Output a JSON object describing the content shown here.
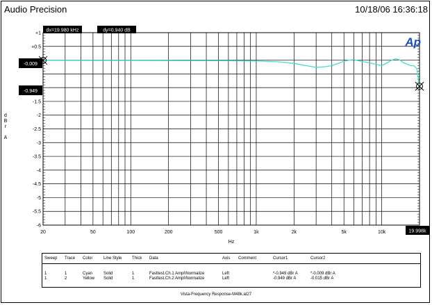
{
  "header": {
    "app_title": "Audio Precision",
    "timestamp": "10/18/06 16:36:18"
  },
  "logo": "Ap",
  "cursor_readout": {
    "dx": "dx=19.980 kHz",
    "dy": "dy=0.940  dB"
  },
  "cursor_tags": {
    "c1": "-0.009",
    "c2": "-0.949",
    "x": "19.998k"
  },
  "chart_data": {
    "type": "line",
    "title": "",
    "xlabel": "Hz",
    "ylabel": "dBr A",
    "x_scale": "log",
    "xlim": [
      20,
      20000
    ],
    "ylim": [
      -6,
      1
    ],
    "x_ticks": [
      {
        "v": 20,
        "label": "20"
      },
      {
        "v": 50,
        "label": "50"
      },
      {
        "v": 100,
        "label": "100"
      },
      {
        "v": 200,
        "label": "200"
      },
      {
        "v": 500,
        "label": "500"
      },
      {
        "v": 1000,
        "label": "1k"
      },
      {
        "v": 2000,
        "label": "2k"
      },
      {
        "v": 5000,
        "label": "5k"
      },
      {
        "v": 10000,
        "label": "10k"
      }
    ],
    "y_ticks": [
      {
        "v": 1,
        "label": "+1"
      },
      {
        "v": 0.5,
        "label": "+0.5"
      },
      {
        "v": 0,
        "label": "0"
      },
      {
        "v": -0.5,
        "label": "-0.5"
      },
      {
        "v": -1,
        "label": "-1"
      },
      {
        "v": -1.5,
        "label": "-1.5"
      },
      {
        "v": -2,
        "label": "-2"
      },
      {
        "v": -2.5,
        "label": "-2.5"
      },
      {
        "v": -3,
        "label": "-3"
      },
      {
        "v": -3.5,
        "label": "-3.5"
      },
      {
        "v": -4,
        "label": "-4"
      },
      {
        "v": -4.5,
        "label": "-4.5"
      },
      {
        "v": -5,
        "label": "-5"
      },
      {
        "v": -5.5,
        "label": "-5.5"
      },
      {
        "v": -6,
        "label": "-6"
      }
    ],
    "grid": true,
    "cursors": [
      {
        "name": "Cursor1",
        "x": 19998,
        "y": -0.949
      },
      {
        "name": "Cursor2",
        "x": 20,
        "y": -0.009
      }
    ],
    "series": [
      {
        "color": "#40e0c8",
        "points": [
          [
            20,
            -0.009
          ],
          [
            50,
            -0.01
          ],
          [
            100,
            -0.012
          ],
          [
            200,
            -0.015
          ],
          [
            500,
            -0.02
          ],
          [
            1000,
            -0.03
          ],
          [
            1500,
            -0.06
          ],
          [
            2000,
            -0.12
          ],
          [
            2500,
            -0.2
          ],
          [
            3000,
            -0.26
          ],
          [
            3500,
            -0.24
          ],
          [
            4000,
            -0.2
          ],
          [
            4500,
            -0.12
          ],
          [
            5000,
            -0.04
          ],
          [
            5500,
            0.0
          ],
          [
            6000,
            0.02
          ],
          [
            6500,
            -0.02
          ],
          [
            7000,
            -0.05
          ],
          [
            8000,
            -0.1
          ],
          [
            9000,
            -0.15
          ],
          [
            10000,
            -0.2
          ],
          [
            11000,
            -0.1
          ],
          [
            12000,
            0.0
          ],
          [
            13000,
            0.05
          ],
          [
            14000,
            0.0
          ],
          [
            15000,
            -0.1
          ],
          [
            16000,
            -0.15
          ],
          [
            17000,
            -0.2
          ],
          [
            18000,
            -0.2
          ],
          [
            19000,
            -0.3
          ],
          [
            19998,
            -0.949
          ]
        ]
      }
    ]
  },
  "table": {
    "headers": [
      "Sweep",
      "Trace",
      "Color",
      "Line Style",
      "Thick",
      "Data",
      "Axis",
      "Comment",
      "Cursor1",
      "Cursor2"
    ],
    "rows": [
      [
        "1",
        "1",
        "Cyan",
        "Solid",
        "1",
        "Fasttest.Ch.1 Ampl\\Normalize",
        "Left",
        "",
        "*-0.949  dBr A",
        "*-0.009  dBr A"
      ],
      [
        "1",
        "2",
        "Yellow",
        "Solid",
        "1",
        "Fasttest.Ch.2 Ampl\\Normalize",
        "Left",
        "",
        "-0.949  dBr A",
        "-0.015  dBr A"
      ]
    ]
  },
  "footer": "Vista-Frequency Response-M48k.at27"
}
